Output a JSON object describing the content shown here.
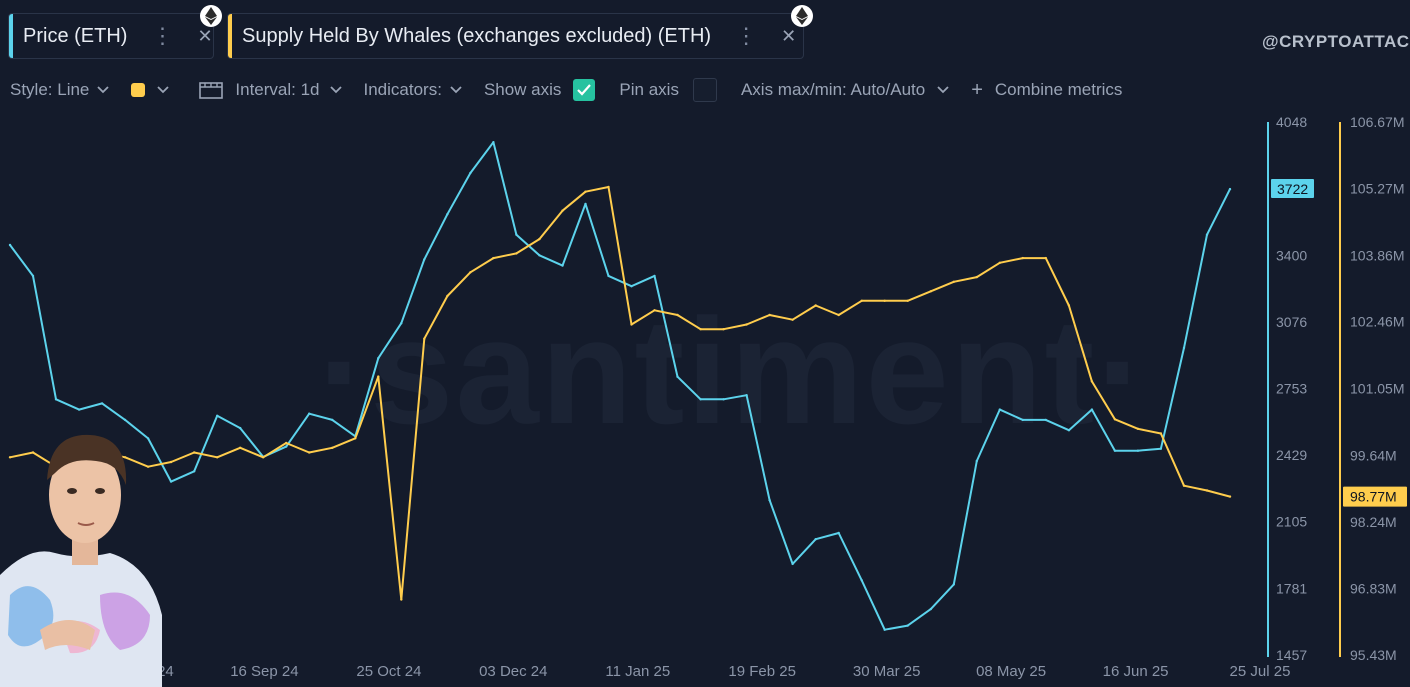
{
  "metric_tabs": [
    {
      "label": "Price (ETH)",
      "color": "#5cd3ec"
    },
    {
      "label": "Supply Held By Whales (exchanges excluded) (ETH)",
      "color": "#ffcd4d"
    }
  ],
  "tab_menu_glyph": "⋮",
  "tab_close_glyph": "✕",
  "brand_watermark": "@CRYPTOATTACK",
  "background_watermark": "·santiment·",
  "toolbar": {
    "style_label": "Style: Line",
    "interval_label": "Interval: 1d",
    "indicators_label": "Indicators:",
    "show_axis_label": "Show axis",
    "show_axis_checked": true,
    "pin_axis_label": "Pin axis",
    "pin_axis_checked": false,
    "axis_minmax_label": "Axis max/min: Auto/Auto",
    "combine_label": "Combine metrics",
    "plus_glyph": "+"
  },
  "icons": [
    "ethereum-icon",
    "more-vert-icon",
    "close-icon",
    "chevron-down-icon",
    "interval-calendar-icon",
    "check-icon",
    "plus-icon"
  ],
  "photo_overlay": "portrait",
  "chart_data": {
    "type": "line",
    "x": [
      "19 Jul 24",
      "26 Jul 24",
      "02 Aug 24",
      "09 Aug 24",
      "16 Aug 24",
      "23 Aug 24",
      "30 Aug 24",
      "06 Sep 24",
      "13 Sep 24",
      "20 Sep 24",
      "27 Sep 24",
      "04 Oct 24",
      "11 Oct 24",
      "18 Oct 24",
      "25 Oct 24",
      "01 Nov 24",
      "08 Nov 24",
      "15 Nov 24",
      "22 Nov 24",
      "29 Nov 24",
      "06 Dec 24",
      "13 Dec 24",
      "20 Dec 24",
      "27 Dec 24",
      "03 Jan 25",
      "10 Jan 25",
      "17 Jan 25",
      "24 Jan 25",
      "31 Jan 25",
      "07 Feb 25",
      "14 Feb 25",
      "21 Feb 25",
      "28 Feb 25",
      "07 Mar 25",
      "14 Mar 25",
      "21 Mar 25",
      "28 Mar 25",
      "04 Apr 25",
      "11 Apr 25",
      "18 Apr 25",
      "25 Apr 25",
      "02 May 25",
      "09 May 25",
      "16 May 25",
      "23 May 25",
      "30 May 25",
      "06 Jun 25",
      "13 Jun 25",
      "20 Jun 25",
      "27 Jun 25",
      "04 Jul 25",
      "11 Jul 25",
      "18 Jul 25",
      "21 Jul 25"
    ],
    "x_ticks": [
      "24 Aug 24",
      "16 Sep 24",
      "25 Oct 24",
      "03 Dec 24",
      "11 Jan 25",
      "19 Feb 25",
      "30 Mar 25",
      "08 May 25",
      "16 Jun 25",
      "25 Jul 25"
    ],
    "series": [
      {
        "name": "Price (ETH)",
        "color": "#5cd3ec",
        "axis": "left",
        "values": [
          3450,
          3300,
          2700,
          2650,
          2680,
          2600,
          2510,
          2300,
          2350,
          2620,
          2560,
          2420,
          2470,
          2630,
          2600,
          2520,
          2900,
          3070,
          3380,
          3600,
          3800,
          3950,
          3500,
          3400,
          3350,
          3650,
          3300,
          3250,
          3300,
          2810,
          2700,
          2700,
          2720,
          2210,
          1900,
          2020,
          2050,
          1820,
          1580,
          1600,
          1680,
          1800,
          2400,
          2650,
          2600,
          2600,
          2550,
          2650,
          2450,
          2450,
          2460,
          2950,
          3500,
          3722
        ]
      },
      {
        "name": "Supply Held By Whales (exchanges excluded) (ETH)",
        "color": "#ffcd4d",
        "axis": "right",
        "values": [
          99.6,
          99.7,
          99.4,
          99.6,
          99.7,
          99.6,
          99.4,
          99.5,
          99.7,
          99.6,
          99.8,
          99.6,
          99.9,
          99.7,
          99.8,
          100.0,
          101.3,
          96.6,
          102.1,
          103.0,
          103.5,
          103.8,
          103.9,
          104.2,
          104.8,
          105.2,
          105.3,
          102.4,
          102.7,
          102.6,
          102.3,
          102.3,
          102.4,
          102.6,
          102.5,
          102.8,
          102.6,
          102.9,
          102.9,
          102.9,
          103.1,
          103.3,
          103.4,
          103.7,
          103.8,
          103.8,
          102.8,
          101.2,
          100.4,
          100.2,
          100.1,
          99.0,
          98.9,
          98.77
        ]
      }
    ],
    "left_axis": {
      "ticks": [
        4048,
        3722,
        3400,
        3076,
        2753,
        2429,
        2105,
        1781,
        1457
      ],
      "ylim": [
        1457,
        4048
      ],
      "highlight": 3722,
      "highlight_color": "#5cd3ec"
    },
    "right_axis": {
      "ticks": [
        "106.67M",
        "105.27M",
        "103.86M",
        "102.46M",
        "101.05M",
        "99.64M",
        "98.77M",
        "98.24M",
        "96.83M",
        "95.43M"
      ],
      "ylim": [
        95.43,
        106.67
      ],
      "highlight": "98.77M",
      "highlight_color": "#ffcd4d"
    },
    "grid": false,
    "legend": "top-left"
  }
}
